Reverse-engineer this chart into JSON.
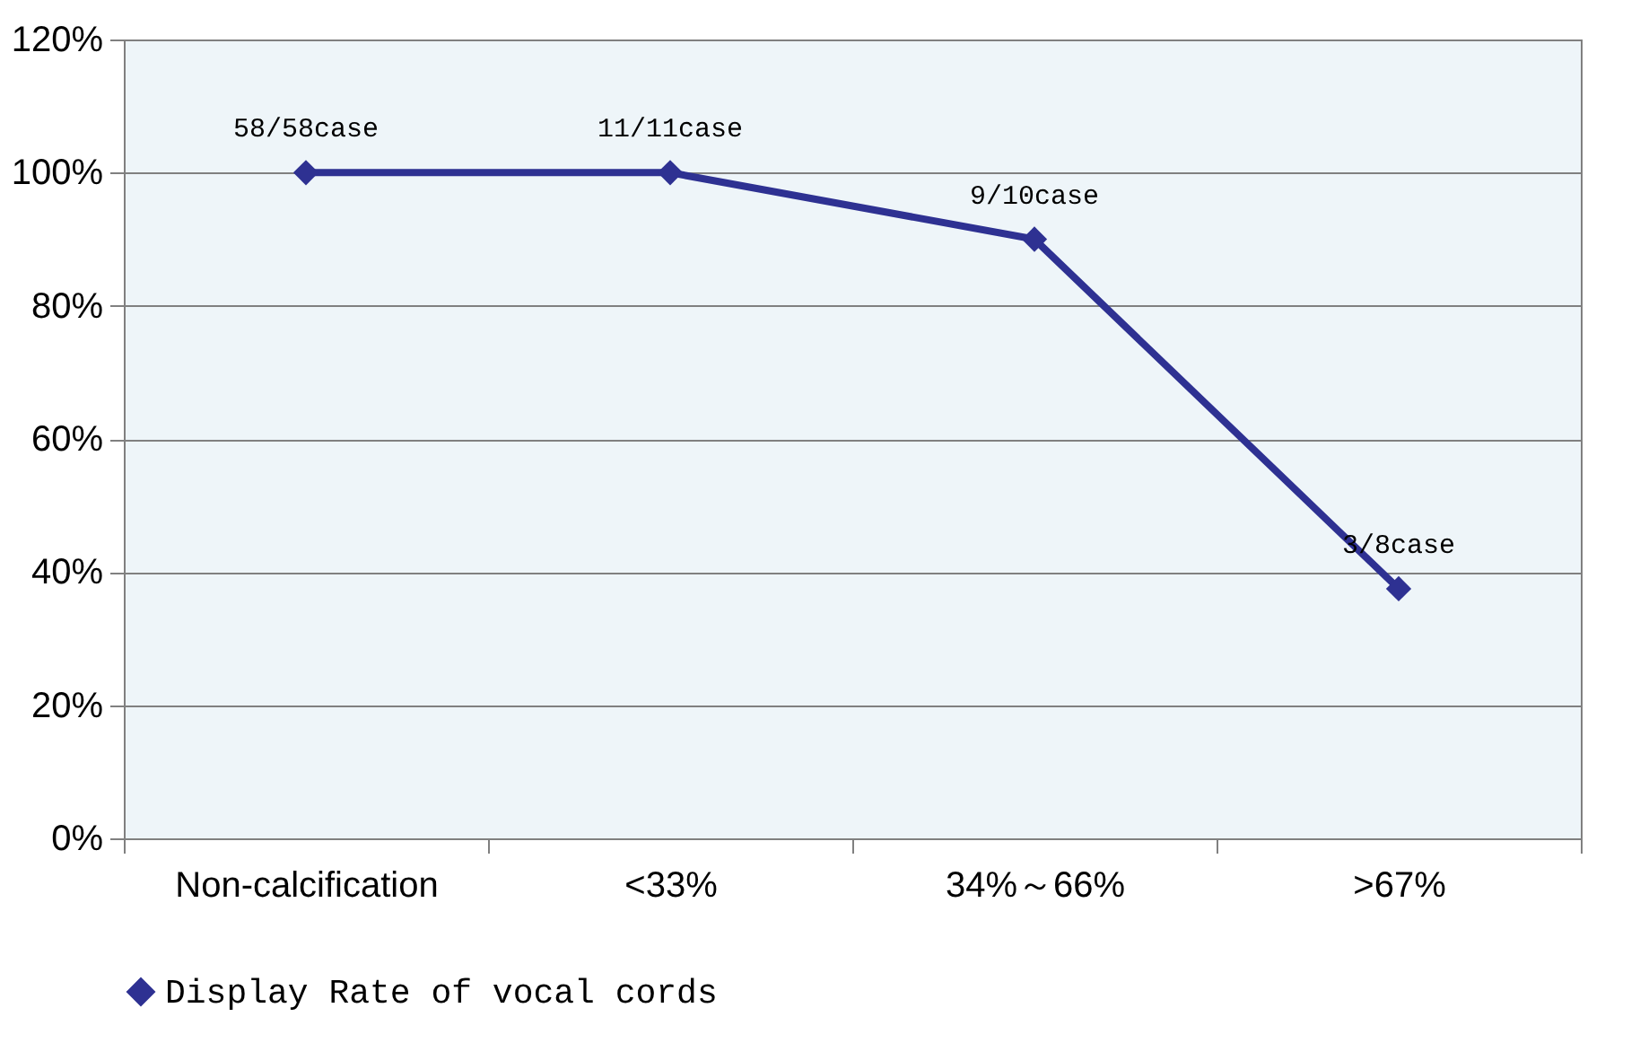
{
  "chart_data": {
    "type": "line",
    "categories": [
      "Non-calcification",
      "<33%",
      "34%～66%",
      ">67%"
    ],
    "series": [
      {
        "name": "Display Rate of vocal cords",
        "color": "#2e3192",
        "values": [
          100,
          100,
          90,
          37.5
        ],
        "value_labels": [
          "58/58case",
          "11/11case",
          "9/10case",
          "3/8case"
        ]
      }
    ],
    "ylim": [
      0,
      120
    ],
    "yticks": [
      {
        "value": 0,
        "label": "0%"
      },
      {
        "value": 20,
        "label": "20%"
      },
      {
        "value": 40,
        "label": "40%"
      },
      {
        "value": 60,
        "label": "60%"
      },
      {
        "value": 80,
        "label": "80%"
      },
      {
        "value": 100,
        "label": "100%"
      },
      {
        "value": 120,
        "label": "120%"
      }
    ],
    "grid": "y",
    "legend": "bottom",
    "marker": "diamond",
    "line_style": "solid"
  }
}
